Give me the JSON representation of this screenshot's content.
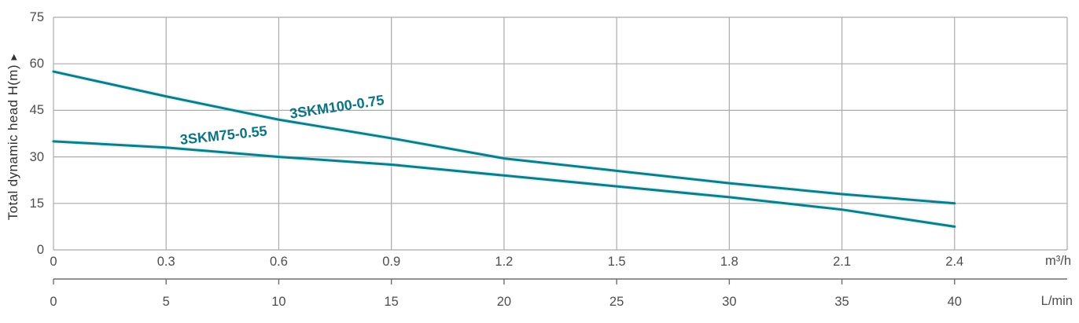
{
  "chart": {
    "y_axis": {
      "title": "Total dynamic head H(m)",
      "arrow": "▲",
      "ticks": [
        "0",
        "15",
        "30",
        "45",
        "60",
        "75"
      ]
    },
    "x_axis_primary": {
      "unit": "m³/h",
      "ticks": [
        "0",
        "0.3",
        "0.6",
        "0.9",
        "1.2",
        "1.5",
        "1.8",
        "2.1",
        "2.4"
      ]
    },
    "x_axis_secondary": {
      "unit": "L/min",
      "ticks": [
        "0",
        "5",
        "10",
        "15",
        "20",
        "25",
        "30",
        "35",
        "40"
      ]
    },
    "colors": {
      "curve": "#0e7d8a",
      "curve_halo": "#bfe9ee",
      "grid": "#ababab",
      "secondary_axis": "#6e6e6e",
      "tick_text": "#4d4d4d",
      "axis_title_text": "#303030"
    }
  },
  "chart_data": {
    "type": "line",
    "title": "",
    "xlabel_primary": "m³/h",
    "xlabel_secondary": "L/min",
    "ylabel": "Total dynamic head H(m)",
    "x": [
      0,
      0.3,
      0.6,
      0.9,
      1.2,
      1.5,
      1.8,
      2.1,
      2.4
    ],
    "x_secondary": [
      0,
      5,
      10,
      15,
      20,
      25,
      30,
      35,
      40
    ],
    "series": [
      {
        "name": "3SKM100-0.75",
        "values": [
          57.5,
          49.5,
          42,
          36,
          29.5,
          25.5,
          21.5,
          18,
          15
        ]
      },
      {
        "name": "3SKM75-0.55",
        "values": [
          35,
          33,
          30,
          27.5,
          24,
          20.5,
          17,
          13,
          7.5
        ]
      }
    ],
    "xlim": [
      0,
      2.7
    ],
    "ylim": [
      0,
      75
    ],
    "y_tick_step": 15,
    "grid": true,
    "legend_position": "inline-curve-labels"
  }
}
